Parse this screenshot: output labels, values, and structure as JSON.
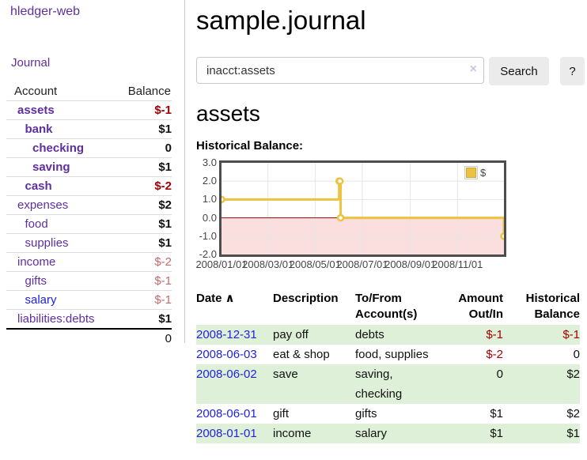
{
  "app": {
    "brand": "hledger-web",
    "nav": {
      "journal": "Journal"
    }
  },
  "sidebar": {
    "header": {
      "account": "Account",
      "balance": "Balance"
    },
    "accounts": [
      {
        "name": "assets",
        "depth": 0,
        "bold": true,
        "balance": "$-1",
        "balance_class": "neg-strong",
        "name_class": ""
      },
      {
        "name": "bank",
        "depth": 1,
        "bold": true,
        "balance": "$1",
        "balance_class": "",
        "name_class": ""
      },
      {
        "name": "checking",
        "depth": 2,
        "bold": true,
        "balance": "0",
        "balance_class": "",
        "name_class": ""
      },
      {
        "name": "saving",
        "depth": 2,
        "bold": true,
        "balance": "$1",
        "balance_class": "",
        "name_class": ""
      },
      {
        "name": "cash",
        "depth": 1,
        "bold": true,
        "balance": "$-2",
        "balance_class": "neg-strong",
        "name_class": ""
      },
      {
        "name": "expenses",
        "depth": 0,
        "bold": false,
        "balance": "$2",
        "balance_class": "",
        "name_class": ""
      },
      {
        "name": "food",
        "depth": 1,
        "bold": false,
        "balance": "$1",
        "balance_class": "",
        "name_class": ""
      },
      {
        "name": "supplies",
        "depth": 1,
        "bold": false,
        "balance": "$1",
        "balance_class": "",
        "name_class": ""
      },
      {
        "name": "income",
        "depth": 0,
        "bold": false,
        "balance": "$-2",
        "balance_class": "neg-soft",
        "name_class": ""
      },
      {
        "name": "gifts",
        "depth": 1,
        "bold": false,
        "balance": "$-1",
        "balance_class": "neg-soft",
        "name_class": ""
      },
      {
        "name": "salary",
        "depth": 1,
        "bold": false,
        "balance": "$-1",
        "balance_class": "neg-soft",
        "name_class": "alt-link"
      },
      {
        "name": "liabilities:debts",
        "depth": 0,
        "bold": false,
        "balance": "$1",
        "balance_class": "",
        "name_class": ""
      }
    ],
    "total": "0"
  },
  "header": {
    "title": "sample.journal"
  },
  "search": {
    "value": "inacct:assets",
    "clear_icon": "×",
    "button_label": "Search",
    "help_label": "?"
  },
  "account_page": {
    "heading": "assets",
    "chart_title": "Historical Balance:"
  },
  "chart_data": {
    "type": "line",
    "title": "Historical Balance:",
    "style": "steps",
    "x_range": [
      "2008-01-01",
      "2008-12-31"
    ],
    "ylim": [
      -2,
      3
    ],
    "y_ticks": [
      3.0,
      2.0,
      1.0,
      0.0,
      -1.0,
      -2.0
    ],
    "x_ticks": [
      {
        "label": "2008/01/01",
        "date": "2008-01-01"
      },
      {
        "label": "2008/03/01",
        "date": "2008-03-01"
      },
      {
        "label": "2008/05/01",
        "date": "2008-05-01"
      },
      {
        "label": "2008/07/01",
        "date": "2008-07-01"
      },
      {
        "label": "2008/09/01",
        "date": "2008-09-01"
      },
      {
        "label": "2008/11/01",
        "date": "2008-11-01"
      }
    ],
    "series": [
      {
        "name": "$",
        "color": "#edc240",
        "points": [
          {
            "x": "2008-01-01",
            "y": 1
          },
          {
            "x": "2008-06-01",
            "y": 2
          },
          {
            "x": "2008-06-02",
            "y": 2
          },
          {
            "x": "2008-06-03",
            "y": 0
          },
          {
            "x": "2008-12-31",
            "y": -1
          }
        ]
      }
    ],
    "grid": true,
    "grid_color": "#e6e6e6",
    "border_color": "#4d4d4d",
    "negative_fill": "#fbdfdf",
    "zero_line_color": "#990000",
    "legend": {
      "label": "$",
      "swatch_color": "#edc240",
      "position": "top-right"
    }
  },
  "register": {
    "sort_icon": "∧",
    "columns": [
      {
        "label": "Date",
        "align": "left"
      },
      {
        "label": "Description",
        "align": "left"
      },
      {
        "label": "To/From Account(s)",
        "align": "left"
      },
      {
        "label": "Amount Out/In",
        "align": "right"
      },
      {
        "label": "Historical Balance",
        "align": "right"
      }
    ],
    "rows": [
      {
        "date": "2008-12-31",
        "description": "pay off",
        "accounts": "debts",
        "amount": "$-1",
        "amount_neg": true,
        "balance": "$-1",
        "balance_neg": true,
        "striped": true
      },
      {
        "date": "2008-06-03",
        "description": "eat & shop",
        "accounts": "food, supplies",
        "amount": "$-2",
        "amount_neg": true,
        "balance": "0",
        "balance_neg": false,
        "striped": false
      },
      {
        "date": "2008-06-02",
        "description": "save",
        "accounts": "saving, checking",
        "amount": "0",
        "amount_neg": false,
        "balance": "$2",
        "balance_neg": false,
        "striped": true
      },
      {
        "date": "2008-06-01",
        "description": "gift",
        "accounts": "gifts",
        "amount": "$1",
        "amount_neg": false,
        "balance": "$2",
        "balance_neg": false,
        "striped": false
      },
      {
        "date": "2008-01-01",
        "description": "income",
        "accounts": "salary",
        "amount": "$1",
        "amount_neg": false,
        "balance": "$1",
        "balance_neg": false,
        "striped": true
      }
    ]
  }
}
